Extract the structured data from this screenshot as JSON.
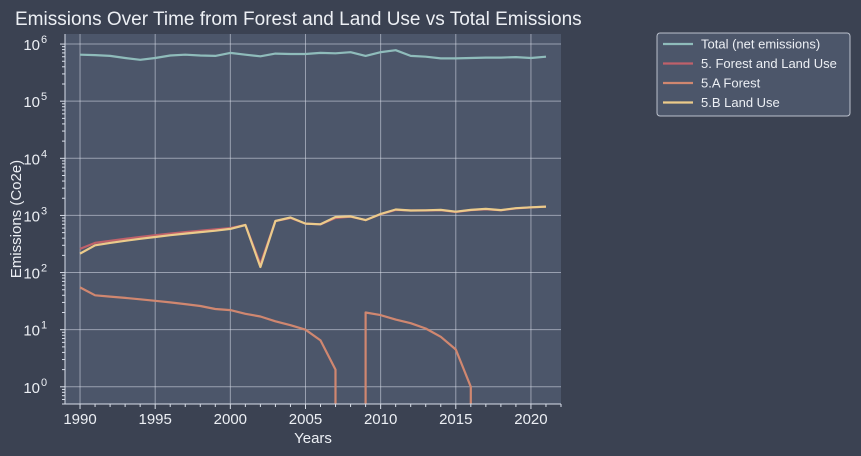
{
  "chart_data": {
    "type": "line",
    "title": "Emissions Over Time from Forest and Land Use vs Total Emissions",
    "xlabel": "Years",
    "ylabel": "Emissions (Co2e)",
    "yscale": "log",
    "xlim": [
      1989,
      2022
    ],
    "ylim": [
      0.5,
      1500000
    ],
    "grid": true,
    "legend_position": "outside-top-right",
    "x_ticks": [
      1990,
      1995,
      2000,
      2005,
      2010,
      2015,
      2020
    ],
    "x_tick_labels": [
      "1990",
      "1995",
      "2000",
      "2005",
      "2010",
      "2015",
      "2020"
    ],
    "y_ticks": [
      1,
      10,
      100,
      1000,
      10000,
      100000,
      1000000
    ],
    "y_tick_labels": [
      "10",
      "10",
      "10",
      "10",
      "10",
      "10",
      "10"
    ],
    "y_tick_exponents": [
      "0",
      "1",
      "2",
      "3",
      "4",
      "5",
      "6"
    ],
    "colors": {
      "background": "#3b4252",
      "plot_background": "#4c566a",
      "grid": "#d8dee9",
      "text": "#eceff4"
    },
    "series": [
      {
        "name": "Total (net emissions)",
        "color": "#8fbcbb",
        "x": [
          1990,
          1991,
          1992,
          1993,
          1994,
          1995,
          1996,
          1997,
          1998,
          1999,
          2000,
          2001,
          2002,
          2003,
          2004,
          2005,
          2006,
          2007,
          2008,
          2009,
          2010,
          2011,
          2012,
          2013,
          2014,
          2015,
          2016,
          2017,
          2018,
          2019,
          2020,
          2021
        ],
        "values": [
          650000,
          640000,
          620000,
          570000,
          530000,
          570000,
          630000,
          650000,
          630000,
          620000,
          700000,
          650000,
          610000,
          680000,
          670000,
          670000,
          700000,
          690000,
          720000,
          620000,
          720000,
          780000,
          620000,
          600000,
          560000,
          560000,
          570000,
          580000,
          580000,
          590000,
          570000,
          600000
        ]
      },
      {
        "name": "5. Forest and Land Use",
        "color": "#bf616a",
        "x": [
          1990,
          1991,
          1992,
          1993,
          1994,
          1995,
          1996,
          1997,
          1998,
          1999,
          2000,
          2001,
          2002,
          2003,
          2004,
          2005,
          2006,
          2007,
          2008,
          2009,
          2010,
          2011,
          2012,
          2013,
          2014,
          2015,
          2016,
          2017,
          2018,
          2019,
          2020,
          2021
        ],
        "values": [
          260,
          330,
          360,
          390,
          420,
          450,
          480,
          510,
          540,
          570,
          600,
          680,
          140,
          800,
          900,
          720,
          700,
          900,
          950,
          830,
          1050,
          1250,
          1220,
          1220,
          1240,
          1150,
          1240,
          1280,
          1230,
          1330,
          1380,
          1420
        ]
      },
      {
        "name": "5.A Forest",
        "color": "#d08770",
        "x": [
          1990,
          1991,
          1992,
          1993,
          1994,
          1995,
          1996,
          1997,
          1998,
          1999,
          2000,
          2001,
          2002,
          2003,
          2004,
          2005,
          2006,
          2007,
          2008,
          2009,
          2010,
          2011,
          2012,
          2013,
          2014,
          2015,
          2016,
          2017,
          2018,
          2019,
          2020,
          2021
        ],
        "values": [
          55,
          40,
          38,
          36,
          34,
          32,
          30,
          28,
          26,
          23,
          22,
          19,
          17,
          14,
          12,
          10,
          6.5,
          2,
          null,
          20,
          18,
          15,
          13,
          10.5,
          7.5,
          4.5,
          1,
          null,
          null,
          null,
          null,
          null
        ]
      },
      {
        "name": "5.B Land Use",
        "color": "#ebcb8b",
        "x": [
          1990,
          1991,
          1992,
          1993,
          1994,
          1995,
          1996,
          1997,
          1998,
          1999,
          2000,
          2001,
          2002,
          2003,
          2004,
          2005,
          2006,
          2007,
          2008,
          2009,
          2010,
          2011,
          2012,
          2013,
          2014,
          2015,
          2016,
          2017,
          2018,
          2019,
          2020,
          2021
        ],
        "values": [
          215,
          300,
          330,
          360,
          390,
          420,
          450,
          480,
          510,
          540,
          580,
          680,
          125,
          800,
          920,
          720,
          700,
          940,
          960,
          830,
          1060,
          1270,
          1220,
          1230,
          1250,
          1160,
          1250,
          1300,
          1240,
          1340,
          1390,
          1430
        ]
      }
    ]
  }
}
